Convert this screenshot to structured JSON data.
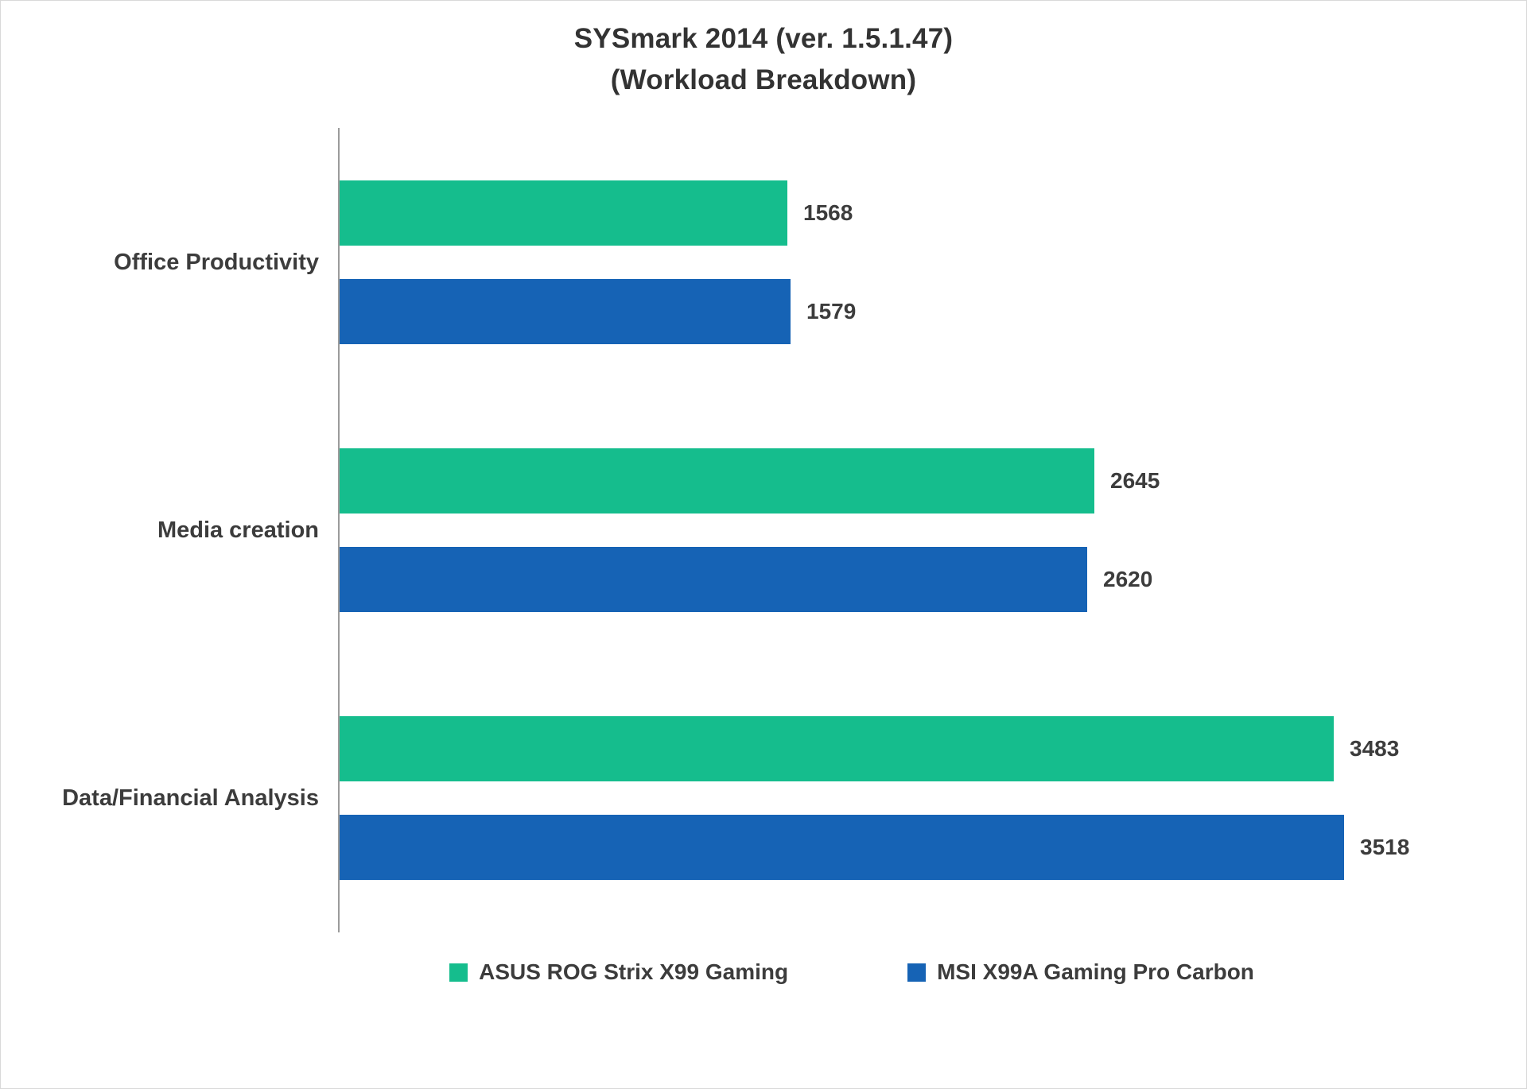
{
  "title": "SYSmark 2014 (ver. 1.5.1.47)",
  "subtitle": "(Workload Breakdown)",
  "chart_data": {
    "type": "bar",
    "orientation": "horizontal",
    "title": "SYSmark 2014 (ver. 1.5.1.47)",
    "subtitle": "(Workload Breakdown)",
    "categories": [
      "Office Productivity",
      "Media creation",
      "Data/Financial Analysis"
    ],
    "series": [
      {
        "name": "ASUS ROG Strix X99 Gaming",
        "color": "#15bd8d",
        "values": [
          1568,
          2645,
          3483
        ]
      },
      {
        "name": "MSI X99A Gaming Pro Carbon",
        "color": "#1663b5",
        "values": [
          1579,
          2620,
          3518
        ]
      }
    ],
    "xlim": [
      0,
      3600
    ],
    "data_labels": true,
    "grid": false,
    "legend_position": "bottom",
    "axis_color": "#9b9b9b",
    "text_color": "#3c3c3c"
  }
}
